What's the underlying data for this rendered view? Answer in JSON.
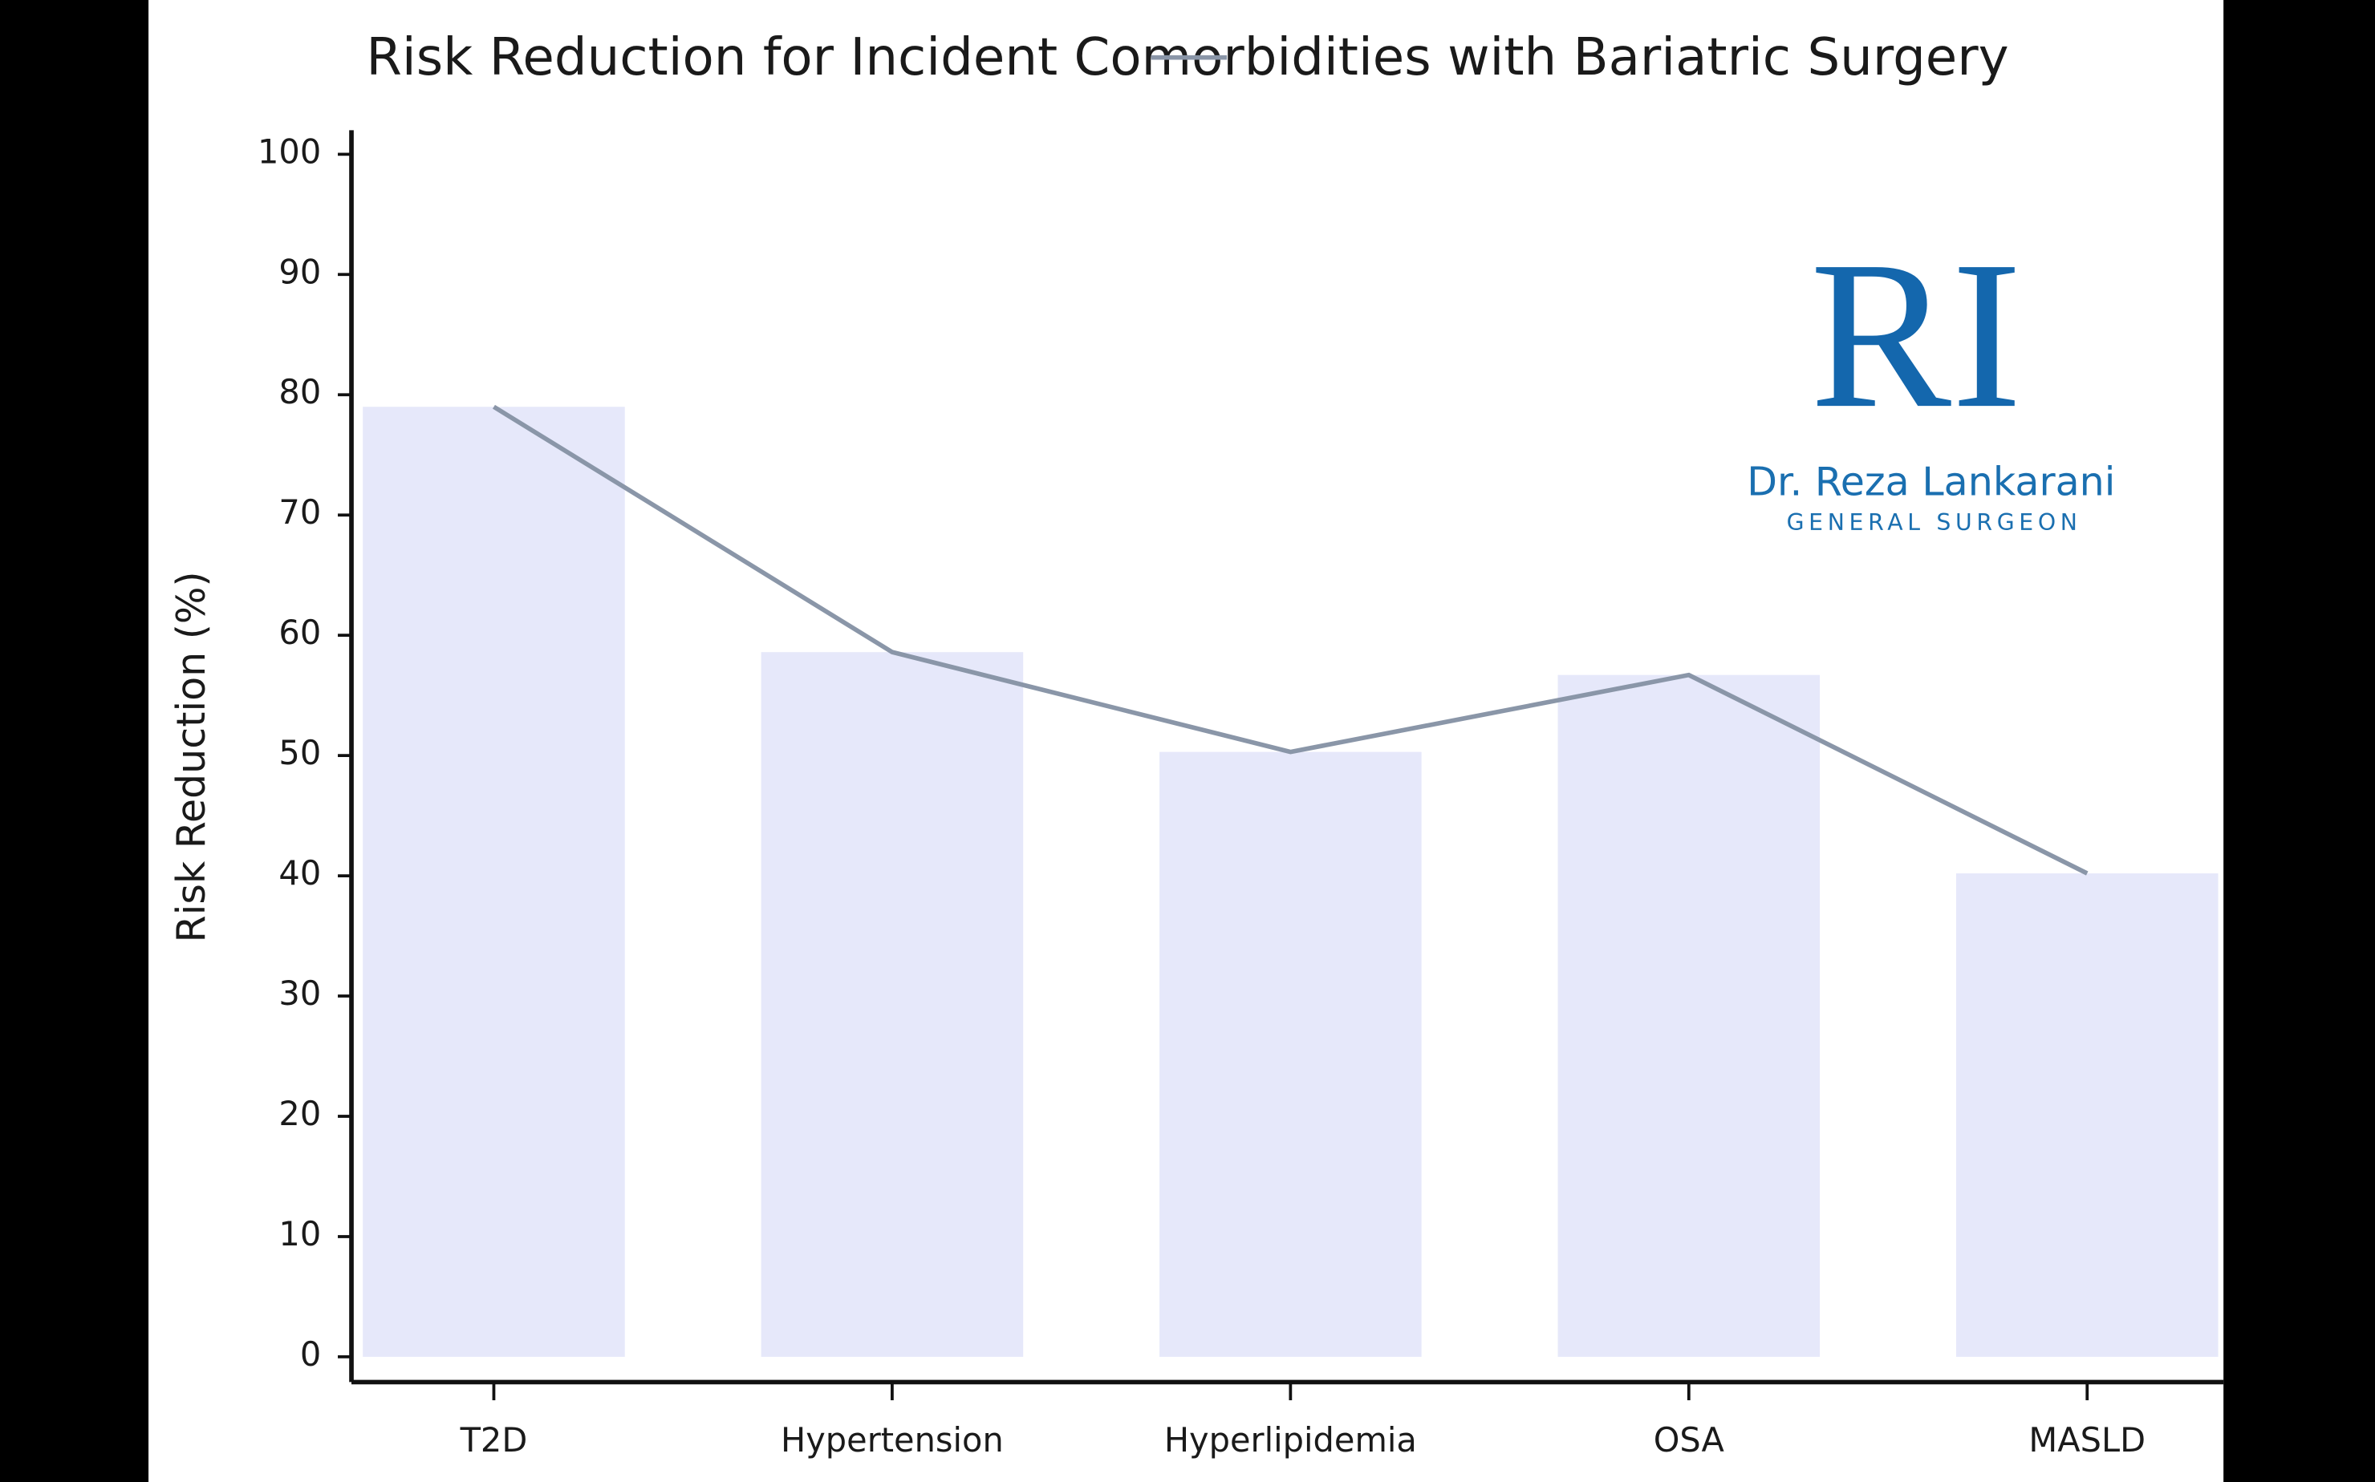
{
  "chart_data": {
    "type": "bar",
    "title": "Risk Reduction for Incident Comorbidities with Bariatric Surgery",
    "y_label": "Risk Reduction (%)",
    "categories": [
      "T2D",
      "Hypertension",
      "Hyperlipidemia",
      "OSA",
      "MASLD"
    ],
    "series": [
      {
        "type": "bar",
        "color": "#e6e8fa",
        "values": [
          79,
          58.6,
          50.3,
          56.7,
          40.2
        ]
      },
      {
        "type": "line",
        "color": "#8a96a8",
        "values": [
          79,
          58.6,
          50.3,
          56.7,
          40.2
        ]
      }
    ],
    "ylim": [
      -2.1,
      102
    ],
    "yticks": [
      0,
      10,
      20,
      30,
      40,
      50,
      60,
      70,
      80,
      90,
      100
    ],
    "logo": {
      "monogram": "RI",
      "name": "Dr. Reza Lankarani",
      "subtitle": "GENERAL SURGEON"
    }
  }
}
